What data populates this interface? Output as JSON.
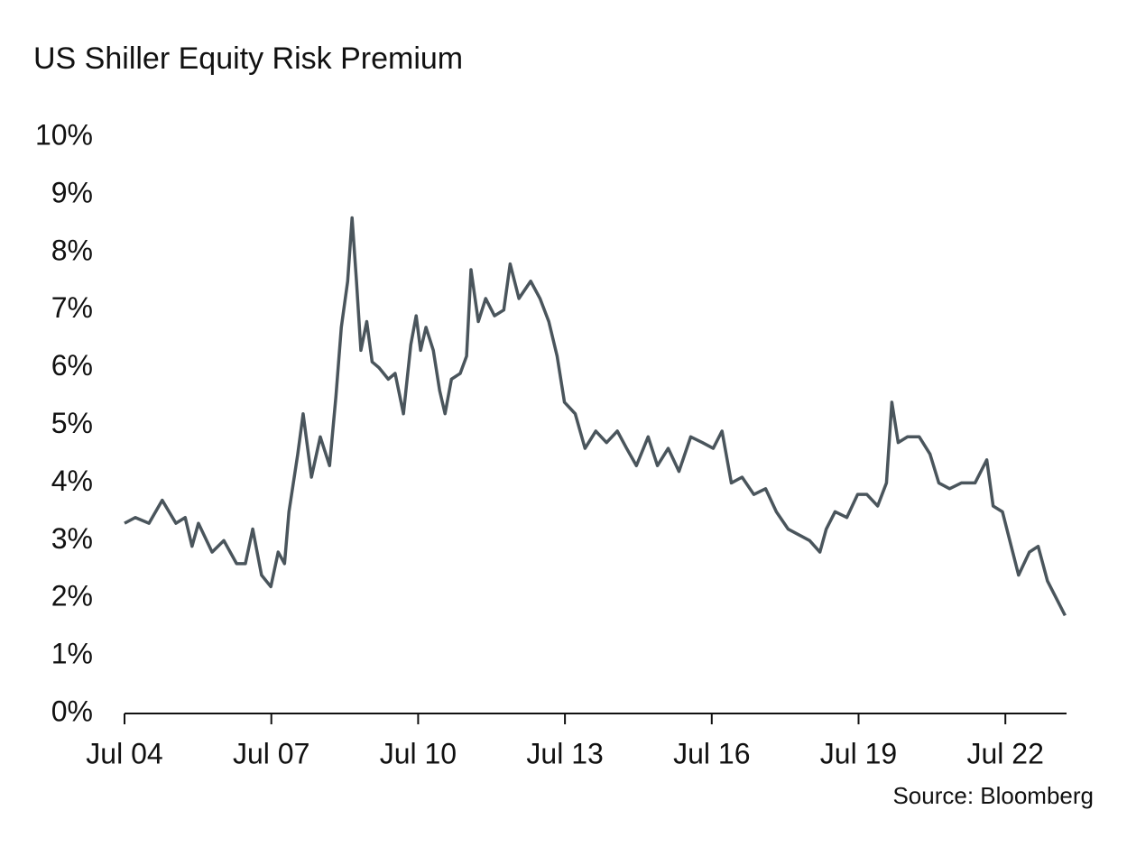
{
  "chart_data": {
    "type": "line",
    "title": "US Shiller Equity Risk Premium",
    "source": "Source: Bloomberg",
    "x": [
      2004.5,
      2004.72,
      2005.0,
      2005.27,
      2005.55,
      2005.74,
      2005.88,
      2006.01,
      2006.29,
      2006.53,
      2006.79,
      2006.97,
      2007.12,
      2007.3,
      2007.49,
      2007.64,
      2007.77,
      2007.86,
      2008.04,
      2008.15,
      2008.32,
      2008.5,
      2008.69,
      2008.82,
      2008.93,
      2009.06,
      2009.15,
      2009.24,
      2009.33,
      2009.45,
      2009.56,
      2009.7,
      2009.89,
      2010.03,
      2010.2,
      2010.35,
      2010.46,
      2010.55,
      2010.66,
      2010.81,
      2010.94,
      2011.05,
      2011.18,
      2011.36,
      2011.49,
      2011.58,
      2011.73,
      2011.88,
      2012.06,
      2012.25,
      2012.38,
      2012.56,
      2012.8,
      2012.99,
      2013.17,
      2013.34,
      2013.49,
      2013.71,
      2013.91,
      2014.13,
      2014.35,
      2014.57,
      2014.76,
      2014.96,
      2015.2,
      2015.39,
      2015.61,
      2015.83,
      2016.07,
      2016.31,
      2016.53,
      2016.71,
      2016.9,
      2017.12,
      2017.36,
      2017.6,
      2017.82,
      2018.06,
      2018.28,
      2018.5,
      2018.71,
      2018.84,
      2019.02,
      2019.26,
      2019.48,
      2019.67,
      2019.89,
      2020.07,
      2020.18,
      2020.31,
      2020.5,
      2020.74,
      2020.96,
      2021.14,
      2021.36,
      2021.6,
      2021.88,
      2022.12,
      2022.25,
      2022.44,
      2022.62,
      2022.77,
      2022.99,
      2023.17,
      2023.36,
      2023.54,
      2023.72
    ],
    "series": [
      {
        "name": "US Shiller Equity Risk Premium",
        "color": "#4a555c",
        "values": [
          3.3,
          3.4,
          3.3,
          3.7,
          3.3,
          3.4,
          2.9,
          3.3,
          2.8,
          3.0,
          2.6,
          2.6,
          3.2,
          2.4,
          2.2,
          2.8,
          2.6,
          3.5,
          4.5,
          5.2,
          4.1,
          4.8,
          4.3,
          5.5,
          6.7,
          7.5,
          8.6,
          7.5,
          6.3,
          6.8,
          6.1,
          6.0,
          5.8,
          5.9,
          5.2,
          6.4,
          6.9,
          6.3,
          6.7,
          6.3,
          5.6,
          5.2,
          5.8,
          5.9,
          6.2,
          7.7,
          6.8,
          7.2,
          6.9,
          7.0,
          7.8,
          7.2,
          7.5,
          7.2,
          6.8,
          6.2,
          5.4,
          5.2,
          4.6,
          4.9,
          4.7,
          4.9,
          4.6,
          4.3,
          4.8,
          4.3,
          4.6,
          4.2,
          4.8,
          4.7,
          4.6,
          4.9,
          4.0,
          4.1,
          3.8,
          3.9,
          3.5,
          3.2,
          3.1,
          3.0,
          2.8,
          3.2,
          3.5,
          3.4,
          3.8,
          3.8,
          3.6,
          4.0,
          5.4,
          4.7,
          4.8,
          4.8,
          4.5,
          4.0,
          3.9,
          4.0,
          4.0,
          4.4,
          3.6,
          3.5,
          2.9,
          2.4,
          2.8,
          2.9,
          2.3,
          2.0,
          1.7
        ]
      }
    ],
    "xlim": [
      2004.5,
      2023.75
    ],
    "xticks": [
      {
        "value": 2004.5,
        "label": "Jul 04"
      },
      {
        "value": 2007.5,
        "label": "Jul 07"
      },
      {
        "value": 2010.5,
        "label": "Jul 10"
      },
      {
        "value": 2013.5,
        "label": "Jul 13"
      },
      {
        "value": 2016.5,
        "label": "Jul 16"
      },
      {
        "value": 2019.5,
        "label": "Jul 19"
      },
      {
        "value": 2022.5,
        "label": "Jul 22"
      }
    ],
    "ylim": [
      0,
      10
    ],
    "yticks": [
      {
        "value": 0,
        "label": "0%"
      },
      {
        "value": 1,
        "label": "1%"
      },
      {
        "value": 2,
        "label": "2%"
      },
      {
        "value": 3,
        "label": "3%"
      },
      {
        "value": 4,
        "label": "4%"
      },
      {
        "value": 5,
        "label": "5%"
      },
      {
        "value": 6,
        "label": "6%"
      },
      {
        "value": 7,
        "label": "7%"
      },
      {
        "value": 8,
        "label": "8%"
      },
      {
        "value": 9,
        "label": "9%"
      },
      {
        "value": 10,
        "label": "10%"
      }
    ],
    "grid": false
  }
}
